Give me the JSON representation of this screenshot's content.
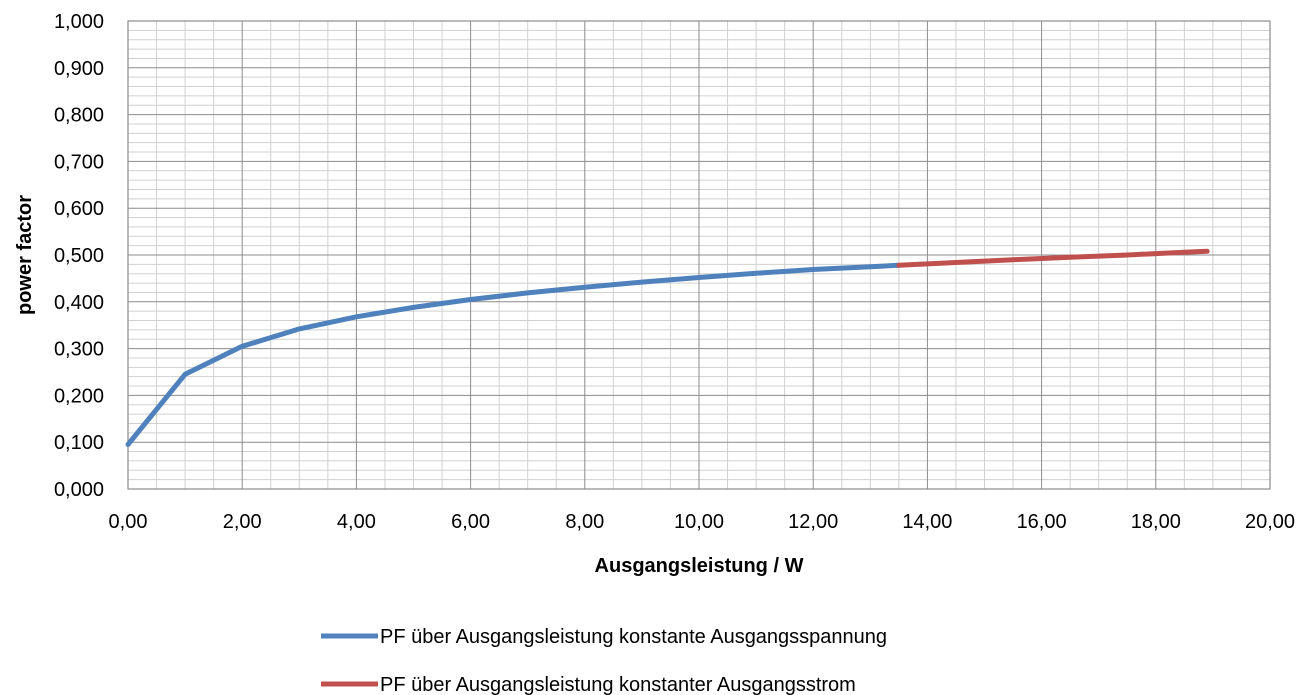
{
  "chart_data": {
    "type": "line",
    "title": "",
    "xlabel": "Ausgangsleistung / W",
    "ylabel": "power factor",
    "xlim": [
      0,
      20
    ],
    "ylim": [
      0,
      1
    ],
    "x_ticks": [
      "0,00",
      "2,00",
      "4,00",
      "6,00",
      "8,00",
      "10,00",
      "12,00",
      "14,00",
      "16,00",
      "18,00",
      "20,00"
    ],
    "y_ticks": [
      "0,000",
      "0,100",
      "0,200",
      "0,300",
      "0,400",
      "0,500",
      "0,600",
      "0,700",
      "0,800",
      "0,900",
      "1,000"
    ],
    "grid": true,
    "legend_position": "bottom",
    "series": [
      {
        "name": "PF über Ausgangsleistung konstante Ausgangsspannung",
        "color": "#4f81bd",
        "points": [
          [
            0.0,
            0.095
          ],
          [
            1.0,
            0.245
          ],
          [
            2.0,
            0.305
          ],
          [
            3.0,
            0.342
          ],
          [
            4.0,
            0.368
          ],
          [
            5.0,
            0.388
          ],
          [
            6.0,
            0.405
          ],
          [
            7.0,
            0.419
          ],
          [
            8.0,
            0.431
          ],
          [
            9.0,
            0.442
          ],
          [
            10.0,
            0.452
          ],
          [
            11.0,
            0.461
          ],
          [
            12.0,
            0.469
          ],
          [
            13.0,
            0.475
          ],
          [
            13.5,
            0.478
          ]
        ]
      },
      {
        "name": "PF über Ausgangsleistung konstanter Ausgangsstrom",
        "color": "#c0504d",
        "points": [
          [
            13.5,
            0.478
          ],
          [
            14.5,
            0.484
          ],
          [
            15.5,
            0.49
          ],
          [
            16.5,
            0.495
          ],
          [
            17.5,
            0.5
          ],
          [
            18.5,
            0.506
          ],
          [
            18.9,
            0.508
          ]
        ]
      }
    ]
  }
}
